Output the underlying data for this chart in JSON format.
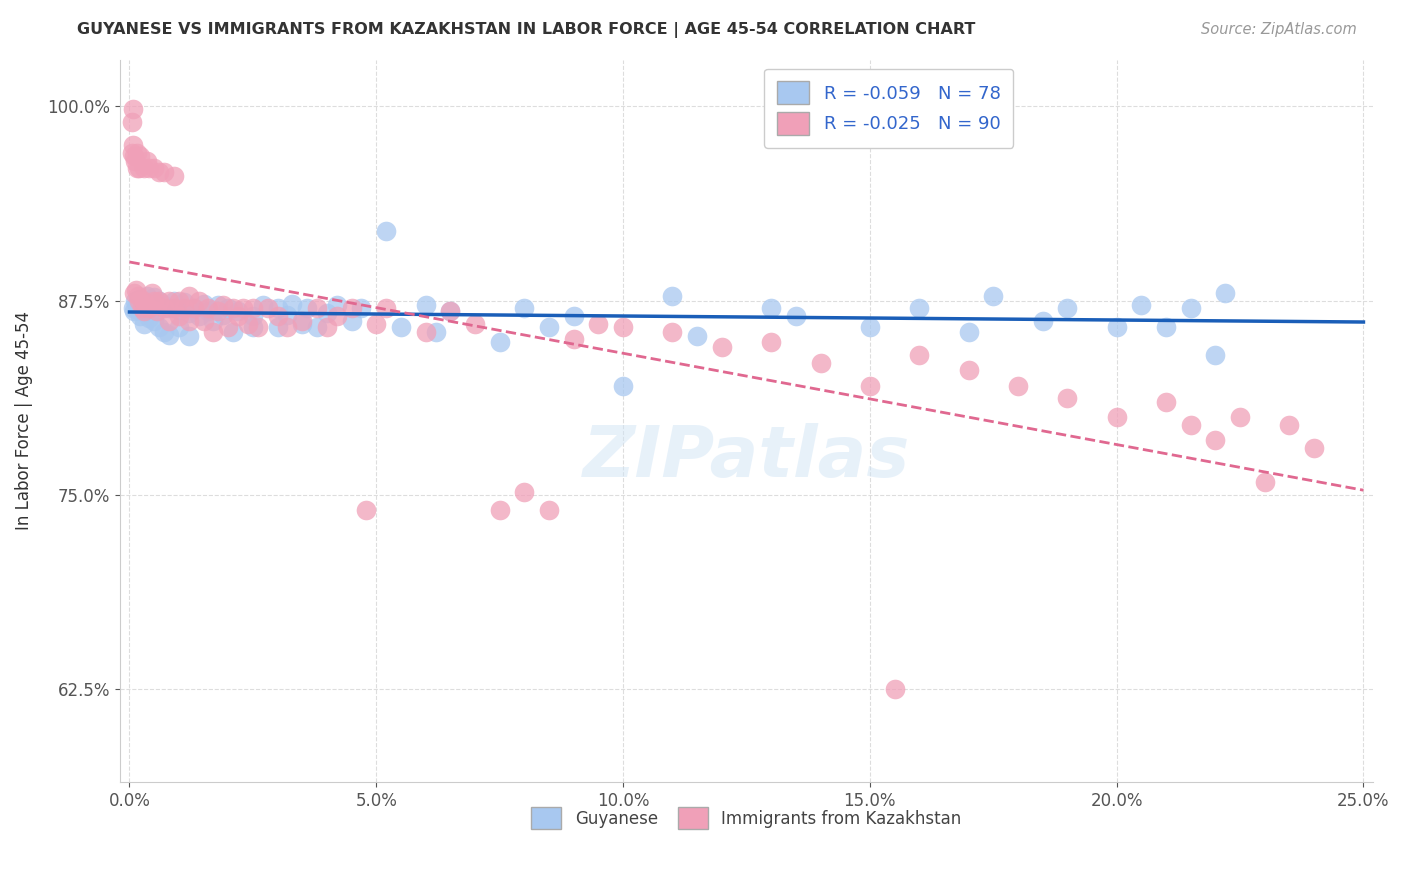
{
  "title": "GUYANESE VS IMMIGRANTS FROM KAZAKHSTAN IN LABOR FORCE | AGE 45-54 CORRELATION CHART",
  "source": "Source: ZipAtlas.com",
  "ylabel": "In Labor Force | Age 45-54",
  "legend_label_1": "Guyanese",
  "legend_label_2": "Immigrants from Kazakhstan",
  "R1": -0.059,
  "N1": 78,
  "R2": -0.025,
  "N2": 90,
  "color_blue": "#a8c8f0",
  "color_pink": "#f0a0b8",
  "color_blue_line": "#1a5eb8",
  "color_pink_line": "#e06890",
  "xlim": [
    -0.002,
    0.252
  ],
  "ylim": [
    0.565,
    1.03
  ],
  "xticks": [
    0.0,
    0.05,
    0.1,
    0.15,
    0.2,
    0.25
  ],
  "xticklabels": [
    "0.0%",
    "5.0%",
    "10.0%",
    "15.0%",
    "20.0%",
    "25.0%"
  ],
  "yticks": [
    0.625,
    0.75,
    0.875,
    1.0
  ],
  "yticklabels": [
    "62.5%",
    "75.0%",
    "87.5%",
    "100.0%"
  ],
  "blue_points": [
    [
      0.0008,
      0.87
    ],
    [
      0.001,
      0.868
    ],
    [
      0.0012,
      0.875
    ],
    [
      0.0015,
      0.872
    ],
    [
      0.0018,
      0.869
    ],
    [
      0.002,
      0.876
    ],
    [
      0.0022,
      0.865
    ],
    [
      0.0025,
      0.871
    ],
    [
      0.003,
      0.874
    ],
    [
      0.003,
      0.86
    ],
    [
      0.0035,
      0.878
    ],
    [
      0.004,
      0.873
    ],
    [
      0.004,
      0.864
    ],
    [
      0.0045,
      0.87
    ],
    [
      0.005,
      0.877
    ],
    [
      0.005,
      0.862
    ],
    [
      0.006,
      0.875
    ],
    [
      0.006,
      0.858
    ],
    [
      0.007,
      0.872
    ],
    [
      0.007,
      0.855
    ],
    [
      0.008,
      0.87
    ],
    [
      0.008,
      0.853
    ],
    [
      0.009,
      0.875
    ],
    [
      0.01,
      0.869
    ],
    [
      0.01,
      0.858
    ],
    [
      0.011,
      0.874
    ],
    [
      0.012,
      0.867
    ],
    [
      0.012,
      0.852
    ],
    [
      0.013,
      0.87
    ],
    [
      0.014,
      0.865
    ],
    [
      0.015,
      0.873
    ],
    [
      0.016,
      0.868
    ],
    [
      0.017,
      0.862
    ],
    [
      0.018,
      0.872
    ],
    [
      0.019,
      0.866
    ],
    [
      0.02,
      0.87
    ],
    [
      0.021,
      0.855
    ],
    [
      0.022,
      0.868
    ],
    [
      0.025,
      0.865
    ],
    [
      0.025,
      0.858
    ],
    [
      0.027,
      0.872
    ],
    [
      0.03,
      0.87
    ],
    [
      0.03,
      0.858
    ],
    [
      0.032,
      0.866
    ],
    [
      0.033,
      0.873
    ],
    [
      0.035,
      0.86
    ],
    [
      0.036,
      0.87
    ],
    [
      0.038,
      0.858
    ],
    [
      0.04,
      0.867
    ],
    [
      0.042,
      0.872
    ],
    [
      0.045,
      0.862
    ],
    [
      0.047,
      0.87
    ],
    [
      0.052,
      0.92
    ],
    [
      0.055,
      0.858
    ],
    [
      0.06,
      0.872
    ],
    [
      0.062,
      0.855
    ],
    [
      0.065,
      0.868
    ],
    [
      0.075,
      0.848
    ],
    [
      0.08,
      0.87
    ],
    [
      0.085,
      0.858
    ],
    [
      0.09,
      0.865
    ],
    [
      0.1,
      0.82
    ],
    [
      0.11,
      0.878
    ],
    [
      0.115,
      0.852
    ],
    [
      0.13,
      0.87
    ],
    [
      0.135,
      0.865
    ],
    [
      0.15,
      0.858
    ],
    [
      0.16,
      0.87
    ],
    [
      0.17,
      0.855
    ],
    [
      0.175,
      0.878
    ],
    [
      0.185,
      0.862
    ],
    [
      0.19,
      0.87
    ],
    [
      0.2,
      0.858
    ],
    [
      0.205,
      0.872
    ],
    [
      0.21,
      0.858
    ],
    [
      0.215,
      0.87
    ],
    [
      0.22,
      0.84
    ],
    [
      0.222,
      0.88
    ]
  ],
  "pink_points": [
    [
      0.0005,
      0.97
    ],
    [
      0.0006,
      0.99
    ],
    [
      0.0007,
      0.998
    ],
    [
      0.0008,
      0.975
    ],
    [
      0.001,
      0.968
    ],
    [
      0.001,
      0.88
    ],
    [
      0.0012,
      0.965
    ],
    [
      0.0014,
      0.882
    ],
    [
      0.0015,
      0.97
    ],
    [
      0.0016,
      0.96
    ],
    [
      0.0018,
      0.878
    ],
    [
      0.002,
      0.875
    ],
    [
      0.002,
      0.96
    ],
    [
      0.0022,
      0.968
    ],
    [
      0.0025,
      0.87
    ],
    [
      0.003,
      0.96
    ],
    [
      0.003,
      0.875
    ],
    [
      0.003,
      0.868
    ],
    [
      0.0035,
      0.965
    ],
    [
      0.004,
      0.87
    ],
    [
      0.004,
      0.96
    ],
    [
      0.0045,
      0.88
    ],
    [
      0.005,
      0.875
    ],
    [
      0.005,
      0.96
    ],
    [
      0.0055,
      0.868
    ],
    [
      0.006,
      0.875
    ],
    [
      0.006,
      0.958
    ],
    [
      0.007,
      0.87
    ],
    [
      0.007,
      0.958
    ],
    [
      0.008,
      0.875
    ],
    [
      0.008,
      0.862
    ],
    [
      0.009,
      0.87
    ],
    [
      0.009,
      0.955
    ],
    [
      0.01,
      0.875
    ],
    [
      0.01,
      0.865
    ],
    [
      0.011,
      0.87
    ],
    [
      0.012,
      0.878
    ],
    [
      0.012,
      0.862
    ],
    [
      0.013,
      0.87
    ],
    [
      0.014,
      0.875
    ],
    [
      0.015,
      0.862
    ],
    [
      0.016,
      0.87
    ],
    [
      0.017,
      0.855
    ],
    [
      0.018,
      0.868
    ],
    [
      0.019,
      0.872
    ],
    [
      0.02,
      0.858
    ],
    [
      0.021,
      0.87
    ],
    [
      0.022,
      0.865
    ],
    [
      0.023,
      0.87
    ],
    [
      0.024,
      0.86
    ],
    [
      0.025,
      0.87
    ],
    [
      0.026,
      0.858
    ],
    [
      0.028,
      0.87
    ],
    [
      0.03,
      0.865
    ],
    [
      0.032,
      0.858
    ],
    [
      0.035,
      0.862
    ],
    [
      0.038,
      0.87
    ],
    [
      0.04,
      0.858
    ],
    [
      0.042,
      0.865
    ],
    [
      0.045,
      0.87
    ],
    [
      0.048,
      0.74
    ],
    [
      0.05,
      0.86
    ],
    [
      0.052,
      0.87
    ],
    [
      0.06,
      0.855
    ],
    [
      0.065,
      0.868
    ],
    [
      0.07,
      0.86
    ],
    [
      0.075,
      0.74
    ],
    [
      0.08,
      0.752
    ],
    [
      0.085,
      0.74
    ],
    [
      0.09,
      0.85
    ],
    [
      0.095,
      0.86
    ],
    [
      0.1,
      0.858
    ],
    [
      0.11,
      0.855
    ],
    [
      0.12,
      0.845
    ],
    [
      0.13,
      0.848
    ],
    [
      0.14,
      0.835
    ],
    [
      0.15,
      0.82
    ],
    [
      0.155,
      0.625
    ],
    [
      0.16,
      0.84
    ],
    [
      0.17,
      0.83
    ],
    [
      0.18,
      0.82
    ],
    [
      0.19,
      0.812
    ],
    [
      0.2,
      0.8
    ],
    [
      0.21,
      0.81
    ],
    [
      0.215,
      0.795
    ],
    [
      0.22,
      0.785
    ],
    [
      0.225,
      0.8
    ],
    [
      0.23,
      0.758
    ],
    [
      0.235,
      0.795
    ],
    [
      0.24,
      0.78
    ]
  ]
}
